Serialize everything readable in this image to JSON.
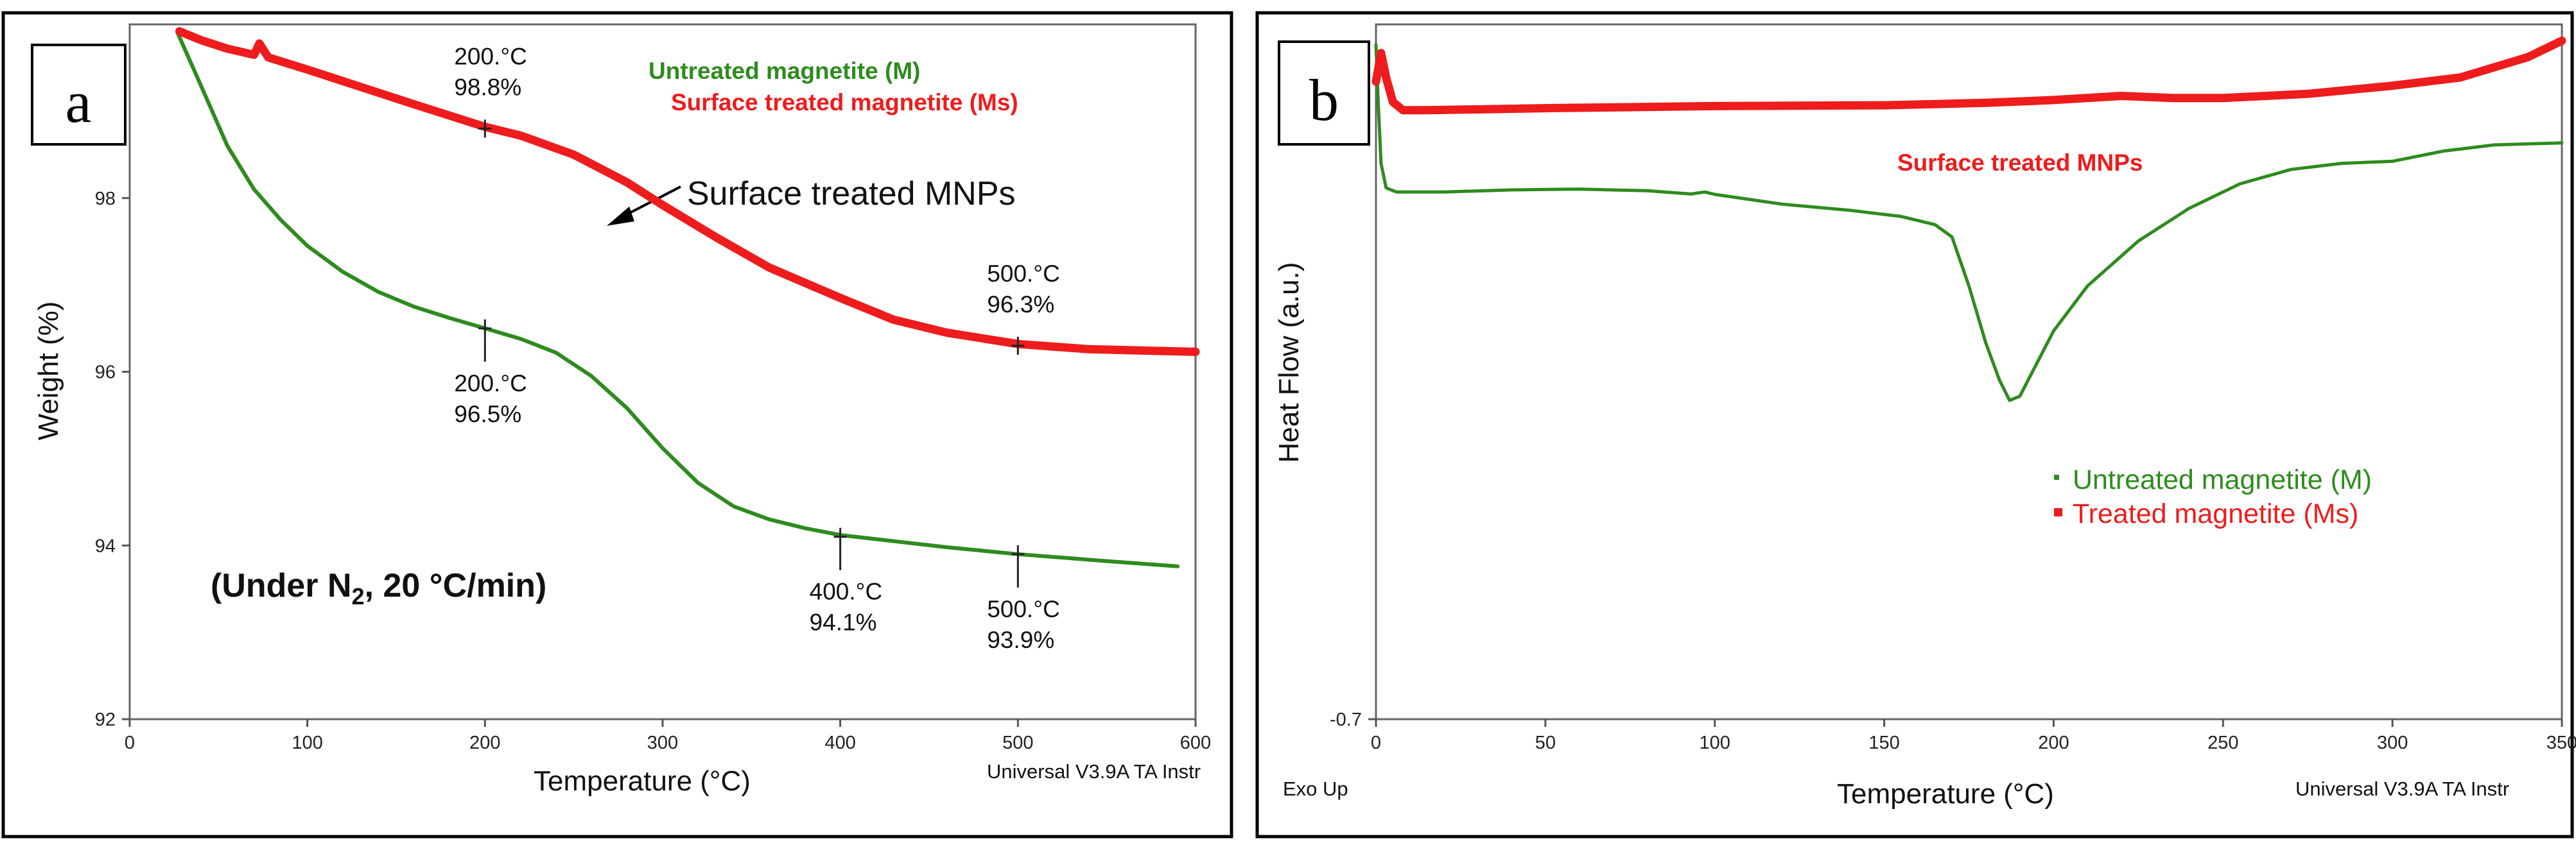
{
  "chart_data": [
    {
      "panel_label": "a",
      "type": "line",
      "xlabel": "Temperature (°C)",
      "ylabel": "Weight (%)",
      "xlim": [
        0,
        600
      ],
      "ylim": [
        92,
        100
      ],
      "x_ticks": [
        0,
        100,
        200,
        300,
        400,
        500,
        600
      ],
      "y_ticks": [
        92,
        94,
        96,
        98
      ],
      "footer": "Universal V3.9A TA Instr",
      "condition": {
        "prefix": "(Under N",
        "subscript": "2",
        "suffix": ", 20 °C/min)"
      },
      "arrow_label": "Surface treated MNPs",
      "series": [
        {
          "name": "Untreated magnetite (M)",
          "color": "#2e8b1e",
          "points": [
            [
              27,
              99.9
            ],
            [
              40,
              99.3
            ],
            [
              55,
              98.6
            ],
            [
              70,
              98.1
            ],
            [
              85,
              97.75
            ],
            [
              100,
              97.45
            ],
            [
              120,
              97.15
            ],
            [
              140,
              96.92
            ],
            [
              160,
              96.75
            ],
            [
              180,
              96.62
            ],
            [
              200,
              96.5
            ],
            [
              220,
              96.38
            ],
            [
              240,
              96.22
            ],
            [
              260,
              95.95
            ],
            [
              280,
              95.58
            ],
            [
              300,
              95.12
            ],
            [
              320,
              94.72
            ],
            [
              340,
              94.45
            ],
            [
              360,
              94.3
            ],
            [
              380,
              94.2
            ],
            [
              400,
              94.12
            ],
            [
              430,
              94.05
            ],
            [
              460,
              93.98
            ],
            [
              500,
              93.9
            ],
            [
              550,
              93.82
            ],
            [
              590,
              93.76
            ]
          ]
        },
        {
          "name": "Surface treated magnetite (Ms)",
          "color": "#ee1c1c",
          "points": [
            [
              28,
              99.92
            ],
            [
              40,
              99.82
            ],
            [
              55,
              99.72
            ],
            [
              70,
              99.65
            ],
            [
              73,
              99.78
            ],
            [
              78,
              99.62
            ],
            [
              100,
              99.48
            ],
            [
              130,
              99.28
            ],
            [
              160,
              99.08
            ],
            [
              200,
              98.82
            ],
            [
              220,
              98.72
            ],
            [
              250,
              98.5
            ],
            [
              280,
              98.18
            ],
            [
              300,
              97.92
            ],
            [
              330,
              97.55
            ],
            [
              360,
              97.2
            ],
            [
              400,
              96.85
            ],
            [
              430,
              96.6
            ],
            [
              460,
              96.45
            ],
            [
              500,
              96.32
            ],
            [
              540,
              96.26
            ],
            [
              600,
              96.23
            ]
          ]
        }
      ],
      "annotations": [
        {
          "series": 1,
          "x": 200,
          "y": 98.8,
          "temp": "200.°C",
          "pct": "98.8%",
          "side": "above"
        },
        {
          "series": 1,
          "x": 500,
          "y": 96.3,
          "temp": "500.°C",
          "pct": "96.3%",
          "side": "above"
        },
        {
          "series": 0,
          "x": 200,
          "y": 96.5,
          "temp": "200.°C",
          "pct": "96.5%",
          "side": "below"
        },
        {
          "series": 0,
          "x": 400,
          "y": 94.1,
          "temp": "400.°C",
          "pct": "94.1%",
          "side": "below"
        },
        {
          "series": 0,
          "x": 500,
          "y": 93.9,
          "temp": "500.°C",
          "pct": "93.9%",
          "side": "below"
        }
      ]
    },
    {
      "panel_label": "b",
      "type": "line",
      "xlabel": "Temperature (°C)",
      "ylabel": "Heat Flow (a.u.)",
      "xlim": [
        0,
        350
      ],
      "ylim": [
        -0.7,
        1.0
      ],
      "x_ticks": [
        0,
        50,
        100,
        150,
        200,
        250,
        300,
        350
      ],
      "y_ticks": [
        -0.7
      ],
      "footer_left": "Exo Up",
      "footer": "Universal V3.9A TA Instr",
      "series_label": "Surface treated MNPs",
      "series": [
        {
          "name": "Untreated magnetite (M)",
          "color": "#2e8b1e",
          "points": [
            [
              0,
              0.95
            ],
            [
              0.6,
              0.82
            ],
            [
              1.5,
              0.66
            ],
            [
              3,
              0.6
            ],
            [
              6,
              0.59
            ],
            [
              20,
              0.59
            ],
            [
              40,
              0.595
            ],
            [
              60,
              0.597
            ],
            [
              80,
              0.593
            ],
            [
              93,
              0.585
            ],
            [
              97,
              0.59
            ],
            [
              100,
              0.584
            ],
            [
              120,
              0.56
            ],
            [
              140,
              0.545
            ],
            [
              155,
              0.53
            ],
            [
              165,
              0.51
            ],
            [
              170,
              0.48
            ],
            [
              175,
              0.36
            ],
            [
              180,
              0.22
            ],
            [
              184,
              0.13
            ],
            [
              187,
              0.08
            ],
            [
              190,
              0.09
            ],
            [
              195,
              0.17
            ],
            [
              200,
              0.25
            ],
            [
              210,
              0.36
            ],
            [
              225,
              0.47
            ],
            [
              240,
              0.55
            ],
            [
              255,
              0.61
            ],
            [
              270,
              0.645
            ],
            [
              285,
              0.66
            ],
            [
              300,
              0.665
            ],
            [
              315,
              0.69
            ],
            [
              330,
              0.705
            ],
            [
              350,
              0.71
            ]
          ]
        },
        {
          "name": "Treated magnetite (Ms)",
          "color": "#ee1c1c",
          "points": [
            [
              0,
              0.86
            ],
            [
              1.5,
              0.93
            ],
            [
              3,
              0.87
            ],
            [
              5,
              0.81
            ],
            [
              8,
              0.79
            ],
            [
              15,
              0.79
            ],
            [
              50,
              0.795
            ],
            [
              100,
              0.8
            ],
            [
              150,
              0.802
            ],
            [
              180,
              0.808
            ],
            [
              200,
              0.815
            ],
            [
              220,
              0.825
            ],
            [
              235,
              0.82
            ],
            [
              250,
              0.82
            ],
            [
              275,
              0.83
            ],
            [
              300,
              0.85
            ],
            [
              320,
              0.87
            ],
            [
              340,
              0.92
            ],
            [
              350,
              0.96
            ]
          ]
        }
      ]
    }
  ]
}
